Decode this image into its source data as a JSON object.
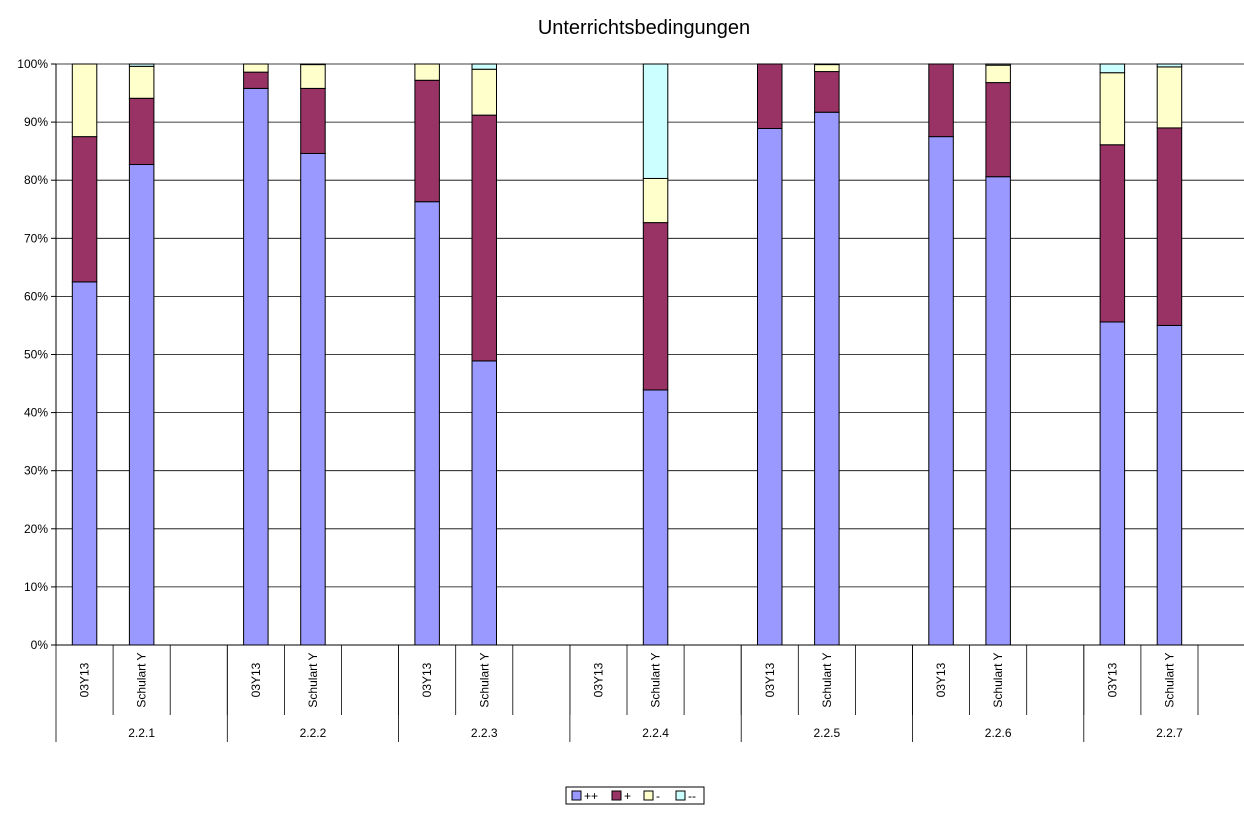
{
  "chart_data": {
    "type": "bar",
    "stacked": true,
    "normalized": true,
    "title": "Unterrichtsbedingungen",
    "xlabel": "",
    "ylabel": "",
    "ylim": [
      0,
      100
    ],
    "y_ticks": [
      "0%",
      "10%",
      "20%",
      "30%",
      "40%",
      "50%",
      "60%",
      "70%",
      "80%",
      "90%",
      "100%"
    ],
    "grid": true,
    "legend_position": "bottom-center",
    "groups": [
      {
        "label": "2.2.1",
        "categories": [
          "03Y13",
          "Schulart Y"
        ]
      },
      {
        "label": "2.2.2",
        "categories": [
          "03Y13",
          "Schulart Y"
        ]
      },
      {
        "label": "2.2.3",
        "categories": [
          "03Y13",
          "Schulart Y"
        ]
      },
      {
        "label": "2.2.4",
        "categories": [
          "03Y13",
          "Schulart Y"
        ]
      },
      {
        "label": "2.2.5",
        "categories": [
          "03Y13",
          "Schulart Y"
        ]
      },
      {
        "label": "2.2.6",
        "categories": [
          "03Y13",
          "Schulart Y"
        ]
      },
      {
        "label": "2.2.7",
        "categories": [
          "03Y13",
          "Schulart Y"
        ]
      }
    ],
    "series": [
      {
        "name": "++",
        "color": "#9999FF",
        "values": [
          62.5,
          82.7,
          95.8,
          84.6,
          76.3,
          48.9,
          null,
          43.9,
          88.9,
          91.7,
          87.5,
          80.6,
          55.6,
          55.0
        ]
      },
      {
        "name": "+",
        "color": "#993366",
        "values": [
          25.0,
          11.4,
          2.8,
          11.2,
          20.9,
          42.3,
          null,
          28.8,
          11.1,
          7.0,
          12.5,
          16.2,
          30.5,
          34.0
        ]
      },
      {
        "name": "-",
        "color": "#FFFFCC",
        "values": [
          12.5,
          5.5,
          1.4,
          4.1,
          2.8,
          7.9,
          null,
          7.6,
          0.0,
          1.2,
          0.0,
          3.0,
          12.4,
          10.5
        ]
      },
      {
        "name": "--",
        "color": "#CCFFFF",
        "values": [
          0.0,
          0.4,
          0.0,
          0.1,
          0.0,
          0.9,
          null,
          19.7,
          0.0,
          0.1,
          0.0,
          0.2,
          1.5,
          0.5
        ]
      }
    ]
  }
}
